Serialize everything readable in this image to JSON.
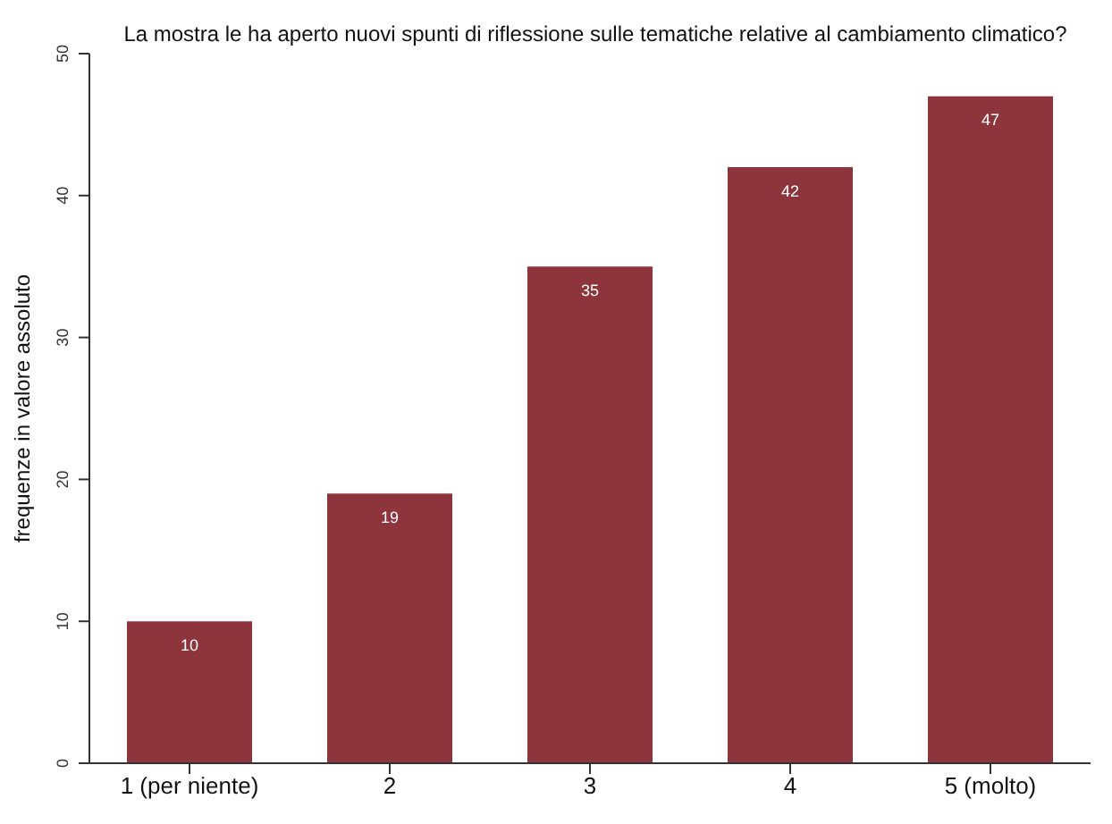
{
  "chart_data": {
    "type": "bar",
    "title": "La mostra le ha aperto nuovi spunti di riflessione sulle tematiche relative al cambiamento climatico?",
    "ylabel": "frequenze in valore assoluto",
    "categories": [
      "1 (per niente)",
      "2",
      "3",
      "4",
      "5 (molto)"
    ],
    "values": [
      10,
      19,
      35,
      42,
      47
    ],
    "color": "#8e343c",
    "ylim": [
      0,
      50
    ],
    "yticks": [
      0,
      10,
      20,
      30,
      40,
      50
    ],
    "grid": false,
    "data_labels": true
  }
}
